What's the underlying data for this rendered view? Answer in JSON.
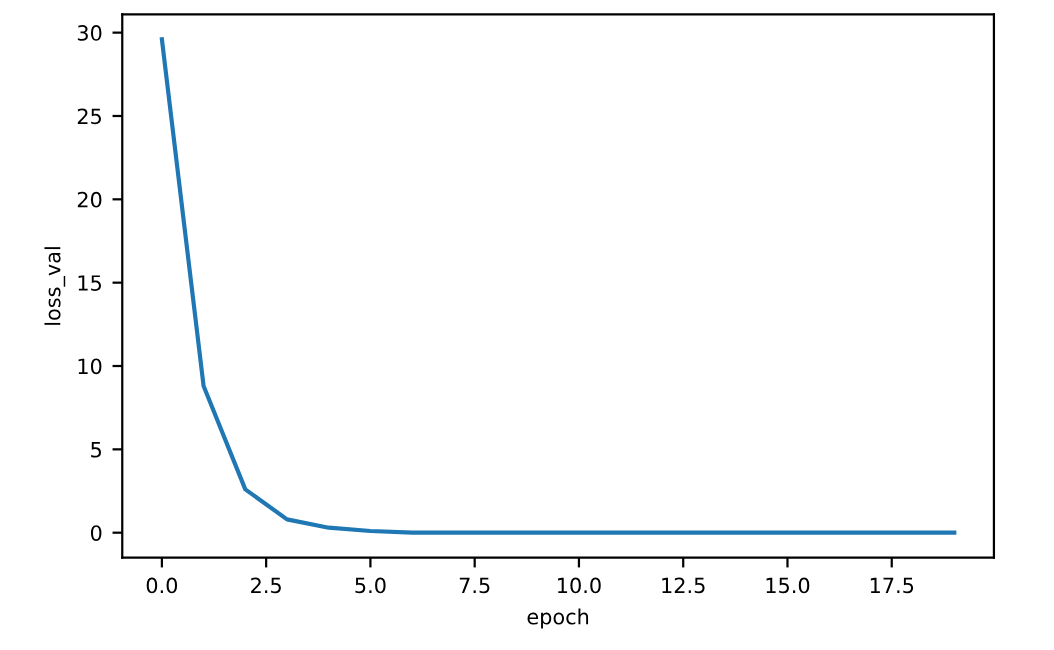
{
  "chart_data": {
    "type": "line",
    "xlabel": "epoch",
    "ylabel": "loss_val",
    "x": [
      0,
      1,
      2,
      3,
      4,
      5,
      6,
      7,
      8,
      9,
      10,
      11,
      12,
      13,
      14,
      15,
      16,
      17,
      18,
      19
    ],
    "series": [
      {
        "color": "#1f77b4",
        "values": [
          29.6,
          8.8,
          2.6,
          0.8,
          0.3,
          0.1,
          0,
          0,
          0,
          0,
          0,
          0,
          0,
          0,
          0,
          0,
          0,
          0,
          0,
          0
        ]
      }
    ],
    "xlim": [
      -0.95,
      19.95
    ],
    "ylim": [
      -1.5,
      31.1
    ],
    "xticks": [
      {
        "value": 0,
        "label": "0.0"
      },
      {
        "value": 2.5,
        "label": "2.5"
      },
      {
        "value": 5,
        "label": "5.0"
      },
      {
        "value": 7.5,
        "label": "7.5"
      },
      {
        "value": 10,
        "label": "10.0"
      },
      {
        "value": 12.5,
        "label": "12.5"
      },
      {
        "value": 15,
        "label": "15.0"
      },
      {
        "value": 17.5,
        "label": "17.5"
      }
    ],
    "yticks": [
      0,
      5,
      10,
      15,
      20,
      25,
      30
    ],
    "grid": false
  }
}
